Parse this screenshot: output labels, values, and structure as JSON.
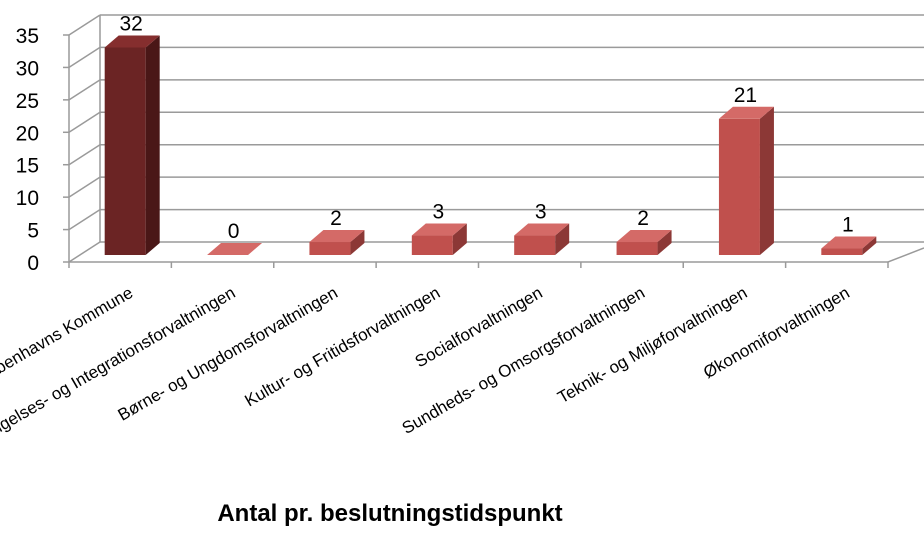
{
  "chart_data": {
    "type": "bar",
    "title": "Antal pr. beslutningstidspunkt",
    "categories": [
      "Københavns Kommune",
      "Beskæftigelses- og Integrationsforvaltningen",
      "Børne- og Ungdomsforvaltningen",
      "Kultur- og Fritidsforvaltningen",
      "Socialforvaltningen",
      "Sundheds- og Omsorgsforvaltningen",
      "Teknik- og Miljøforvaltningen",
      "Økonomiforvaltningen"
    ],
    "values": [
      32,
      0,
      2,
      3,
      3,
      2,
      21,
      1
    ],
    "data_labels": [
      "32",
      "0",
      "2",
      "3",
      "3",
      "2",
      "21",
      "1"
    ],
    "y_ticks": [
      "0",
      "5",
      "10",
      "15",
      "20",
      "25",
      "30",
      "35"
    ],
    "ylim": [
      0,
      35
    ],
    "xlabel": "",
    "ylabel": "",
    "grid": true,
    "legend": "none",
    "three_d": true,
    "colors": {
      "first_bar": [
        "#6b2424",
        "#4a1717",
        "#852e2e"
      ],
      "other_bars": [
        "#c0504d",
        "#8c3836",
        "#d46a67"
      ],
      "grid": "#9a9a9a"
    }
  }
}
